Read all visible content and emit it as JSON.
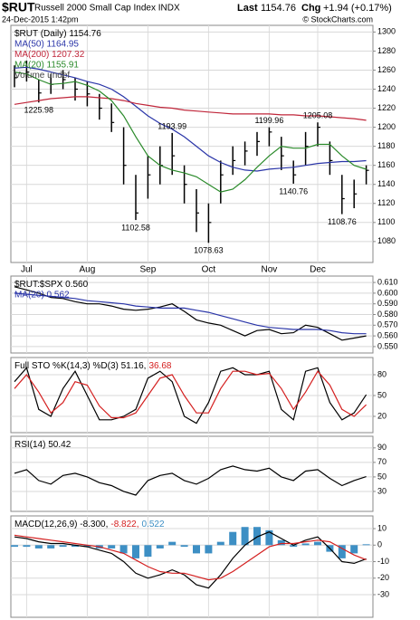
{
  "header": {
    "symbol": "$RUT",
    "name": "Russell 2000 Small Cap Index INDX",
    "date": "24-Dec-2015 1:42pm",
    "last_label": "Last",
    "last_value": "1154.76",
    "chg_label": "Chg",
    "chg_value": "+1.94 (+0.17%)",
    "credit": "© StockCharts.com"
  },
  "chart_data": [
    {
      "type": "ohlc",
      "categories": [
        null,
        "Jul",
        null,
        null,
        null,
        null,
        "Aug",
        null,
        null,
        null,
        null,
        "Sep",
        null,
        null,
        null,
        null,
        "Oct",
        null,
        null,
        null,
        null,
        "Nov",
        null,
        null,
        null,
        "Dec",
        null,
        null,
        null,
        null
      ],
      "high": [
        1265,
        1270,
        1250,
        1256,
        1260,
        1252,
        1248,
        1235,
        1225,
        1200,
        1150,
        1170,
        1180,
        1193.99,
        1160,
        1135,
        1120,
        1165,
        1180,
        1185,
        1195,
        1199.96,
        1190,
        1165,
        1195,
        1205.08,
        1185,
        1150,
        1145,
        1160
      ],
      "low": [
        1242,
        1248,
        1225.98,
        1235,
        1240,
        1228,
        1222,
        1208,
        1195,
        1140,
        1102.58,
        1125,
        1140,
        1150,
        1120,
        1090,
        1078.63,
        1120,
        1150,
        1160,
        1170,
        1180,
        1155,
        1140.76,
        1160,
        1180,
        1150,
        1108.76,
        1115,
        1140
      ],
      "close": [
        1252,
        1258,
        1236,
        1245,
        1250,
        1240,
        1235,
        1220,
        1205,
        1160,
        1110,
        1150,
        1160,
        1170,
        1140,
        1110,
        1100,
        1150,
        1165,
        1175,
        1185,
        1195,
        1170,
        1150,
        1180,
        1200,
        1165,
        1125,
        1130,
        1154.76
      ],
      "color": "#000000",
      "series": [
        {
          "name": "MA(50) 1164.95",
          "color": "#2a35a8",
          "values": [
            1262,
            1263,
            1261,
            1258,
            1255,
            1252,
            1248,
            1245,
            1240,
            1232,
            1222,
            1212,
            1204,
            1198,
            1190,
            1180,
            1170,
            1163,
            1158,
            1155,
            1154,
            1156,
            1157,
            1158,
            1160,
            1162,
            1163,
            1164,
            1164,
            1164.95
          ]
        },
        {
          "name": "MA(200) 1207.32",
          "color": "#c0263a",
          "values": [
            1224,
            1226,
            1228,
            1230,
            1231,
            1232,
            1232,
            1231,
            1230,
            1228,
            1225,
            1223,
            1221,
            1220,
            1218,
            1217,
            1216,
            1215,
            1214,
            1214,
            1214,
            1214,
            1213,
            1213,
            1212,
            1212,
            1211,
            1210,
            1209,
            1207.32
          ]
        },
        {
          "name": "MA(20) 1155.91",
          "color": "#2a8a2a",
          "values": [
            1258,
            1256,
            1250,
            1245,
            1246,
            1248,
            1244,
            1238,
            1228,
            1212,
            1190,
            1170,
            1160,
            1155,
            1152,
            1148,
            1140,
            1132,
            1135,
            1145,
            1158,
            1170,
            1180,
            1178,
            1178,
            1182,
            1182,
            1170,
            1160,
            1155.91
          ]
        }
      ],
      "legend": [
        [
          {
            "text": "$RUT (Daily) 1154.76",
            "color": "#000000"
          }
        ],
        [
          {
            "text": "MA(50) 1164.95",
            "color": "#2a35a8"
          }
        ],
        [
          {
            "text": "MA(200) 1207.32",
            "color": "#c0263a"
          }
        ],
        [
          {
            "text": "MA(20) 1155.91",
            "color": "#2a8a2a"
          }
        ],
        [
          {
            "text": "Volume undef",
            "color": "#444444"
          }
        ]
      ],
      "ylim": [
        1058,
        1307
      ],
      "yticks": [
        1080,
        1100,
        1120,
        1140,
        1160,
        1180,
        1200,
        1220,
        1240,
        1260,
        1280,
        1300
      ],
      "grid": true
    },
    {
      "type": "line",
      "series": [
        {
          "name": "$RUT:$SPX 0.560",
          "color": "#000000",
          "values": [
            0.606,
            0.603,
            0.6,
            0.596,
            0.595,
            0.592,
            0.59,
            0.59,
            0.588,
            0.585,
            0.584,
            0.585,
            0.587,
            0.59,
            0.583,
            0.575,
            0.572,
            0.57,
            0.565,
            0.56,
            0.565,
            0.566,
            0.562,
            0.563,
            0.57,
            0.568,
            0.562,
            0.556,
            0.558,
            0.56
          ]
        },
        {
          "name": "MA(20) 0.562",
          "color": "#2a35a8",
          "values": [
            0.6,
            0.599,
            0.598,
            0.597,
            0.596,
            0.595,
            0.593,
            0.592,
            0.591,
            0.59,
            0.588,
            0.587,
            0.586,
            0.586,
            0.586,
            0.584,
            0.582,
            0.579,
            0.576,
            0.573,
            0.57,
            0.568,
            0.567,
            0.566,
            0.566,
            0.566,
            0.565,
            0.563,
            0.562,
            0.562
          ]
        }
      ],
      "legend": [
        [
          {
            "text": "$RUT:$SPX 0.560",
            "color": "#000000"
          }
        ],
        [
          {
            "text": "MA(20) 0.562",
            "color": "#2a35a8"
          }
        ]
      ],
      "ylim": [
        0.544,
        0.616
      ],
      "yticks": [
        {
          "value": 0.55,
          "label": "0.550"
        },
        {
          "value": 0.56,
          "label": "0.560"
        },
        {
          "value": 0.57,
          "label": "0.570"
        },
        {
          "value": 0.58,
          "label": "0.580"
        },
        {
          "value": 0.59,
          "label": "0.590"
        },
        {
          "value": 0.6,
          "label": "0.600"
        },
        {
          "value": 0.61,
          "label": "0.610"
        }
      ],
      "grid": true
    },
    {
      "type": "line",
      "series": [
        {
          "name": "%K(14,3)",
          "color": "#000000",
          "values": [
            70,
            90,
            30,
            20,
            60,
            85,
            50,
            15,
            15,
            20,
            30,
            75,
            85,
            70,
            20,
            10,
            40,
            85,
            90,
            80,
            80,
            85,
            30,
            15,
            85,
            90,
            40,
            15,
            25,
            51.16
          ]
        },
        {
          "name": "%D(3)",
          "color": "#d42020",
          "values": [
            60,
            80,
            55,
            25,
            40,
            70,
            65,
            35,
            18,
            18,
            25,
            50,
            75,
            80,
            50,
            25,
            25,
            60,
            85,
            85,
            80,
            82,
            60,
            30,
            55,
            85,
            65,
            30,
            20,
            36.68
          ]
        }
      ],
      "legend": [
        [
          {
            "text": "Full STO %K(14,3) %D(3) 51.16,",
            "color": "#000000"
          },
          {
            "text": "36.68",
            "color": "#d42020"
          }
        ]
      ],
      "ylim": [
        -3.5,
        104.8
      ],
      "yticks": [
        20,
        50,
        80
      ],
      "grid": true
    },
    {
      "type": "line",
      "series": [
        {
          "name": "RSI(14) 50.42",
          "color": "#000000",
          "values": [
            55,
            60,
            45,
            40,
            52,
            55,
            50,
            42,
            38,
            30,
            25,
            45,
            52,
            55,
            45,
            40,
            48,
            60,
            65,
            60,
            58,
            62,
            50,
            45,
            58,
            60,
            48,
            38,
            45,
            50.42
          ]
        }
      ],
      "legend": [
        [
          {
            "text": "RSI(14) 50.42",
            "color": "#000000"
          }
        ]
      ],
      "ylim": [
        2.5,
        106
      ],
      "yticks": [
        30,
        50,
        70,
        90
      ],
      "grid": true
    },
    {
      "type": "line",
      "series": [
        {
          "name": "Histogram 0.522",
          "type": "bar",
          "color": "#3d8fc4",
          "values": [
            -1,
            -1,
            -2,
            -2,
            -1,
            -1,
            -1,
            -2,
            -2,
            -5,
            -8,
            -7,
            -2,
            2,
            -1,
            -5,
            -5,
            2,
            8,
            11,
            11,
            9,
            3,
            -1,
            1,
            2,
            -4,
            -8,
            -5,
            0.522
          ]
        },
        {
          "name": "MACD(12,26,9) -8.300",
          "color": "#000000",
          "values": [
            5,
            4,
            2,
            1,
            1,
            0,
            -1,
            -3,
            -5,
            -10,
            -17,
            -20,
            -18,
            -15,
            -18,
            -24,
            -26,
            -18,
            -8,
            0,
            5,
            8,
            4,
            0,
            3,
            5,
            -2,
            -10,
            -11,
            -8.3
          ]
        },
        {
          "name": "Signal -8.822",
          "color": "#d42020",
          "values": [
            6,
            5,
            4,
            3,
            2,
            1,
            0,
            -1,
            -3,
            -5,
            -9,
            -13,
            -16,
            -17,
            -17,
            -19,
            -21,
            -20,
            -16,
            -11,
            -6,
            -1,
            1,
            1,
            2,
            3,
            2,
            -2,
            -6,
            -8.822
          ]
        }
      ],
      "legend": [
        [
          {
            "text": "MACD(12,26,9) -8.300,",
            "color": "#000000"
          },
          {
            "text": "-8.822,",
            "color": "#d42020"
          },
          {
            "text": "0.522",
            "color": "#3d8fc4"
          }
        ]
      ],
      "ylim": [
        -43.7,
        17.7
      ],
      "yticks": [
        -30,
        -20,
        -10,
        0,
        10
      ],
      "grid": true
    }
  ]
}
